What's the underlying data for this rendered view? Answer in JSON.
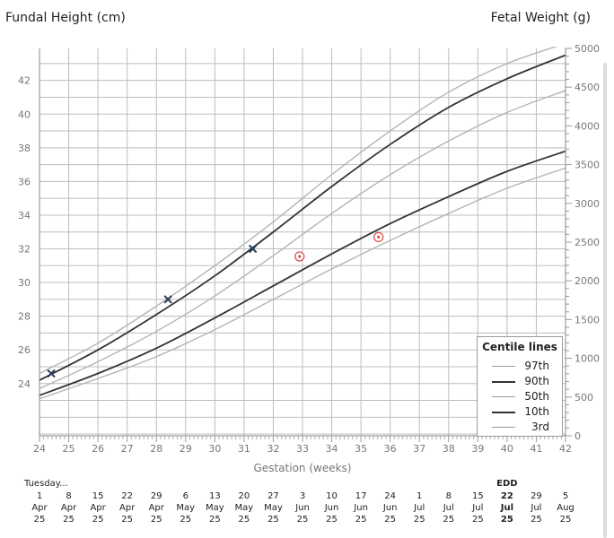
{
  "header": {
    "left_title": "Fundal Height (cm)",
    "right_title": "Fetal Weight (g)"
  },
  "chart_data": {
    "type": "line",
    "xlabel": "Gestation (weeks)",
    "ylabel_left": "Fundal Height (cm)",
    "ylabel_right": "Fetal Weight (g)",
    "xlim": [
      24,
      42
    ],
    "x_ticks": [
      "24",
      "25",
      "26",
      "27",
      "28",
      "29",
      "30",
      "31",
      "32",
      "33",
      "34",
      "35",
      "36",
      "37",
      "38",
      "39",
      "40",
      "41",
      "42"
    ],
    "ylim_left": [
      20.9,
      43.9
    ],
    "y_ticks_left": [
      "24",
      "26",
      "28",
      "30",
      "32",
      "34",
      "36",
      "38",
      "40",
      "42"
    ],
    "ylim_right": [
      0,
      5000
    ],
    "y_ticks_right": [
      "0",
      "500",
      "1000",
      "1500",
      "2000",
      "2500",
      "3000",
      "3500",
      "4000",
      "4500",
      "5000"
    ],
    "grid": true,
    "x": [
      24,
      26,
      28,
      30,
      32,
      34,
      36,
      38,
      40,
      42
    ],
    "series": [
      {
        "name": "97th",
        "style": "light",
        "color": "#b4b4b4",
        "values": [
          24.6,
          26.4,
          28.6,
          31.0,
          33.6,
          36.4,
          39.0,
          41.3,
          43.0,
          44.2
        ]
      },
      {
        "name": "90th",
        "style": "dark",
        "color": "#333333",
        "values": [
          24.2,
          26.0,
          28.1,
          30.4,
          33.0,
          35.7,
          38.2,
          40.4,
          42.1,
          43.5
        ]
      },
      {
        "name": "50th",
        "style": "light",
        "color": "#b4b4b4",
        "values": [
          23.7,
          25.3,
          27.1,
          29.2,
          31.6,
          34.1,
          36.4,
          38.4,
          40.1,
          41.4
        ]
      },
      {
        "name": "10th",
        "style": "dark",
        "color": "#333333",
        "values": [
          23.3,
          24.6,
          26.1,
          27.9,
          29.8,
          31.7,
          33.5,
          35.1,
          36.6,
          37.8
        ]
      },
      {
        "name": "3rd",
        "style": "light",
        "color": "#b4b4b4",
        "values": [
          23.1,
          24.3,
          25.6,
          27.2,
          29.0,
          30.8,
          32.5,
          34.1,
          35.6,
          36.8
        ]
      }
    ],
    "fundal_measurements": {
      "marker": "x",
      "color": "#2c3e5c",
      "points": [
        {
          "x": 24.4,
          "y": 24.6
        },
        {
          "x": 28.4,
          "y": 29.0
        },
        {
          "x": 31.3,
          "y": 32.0
        }
      ]
    },
    "weight_estimates": {
      "marker": "circle-dot",
      "color": "#d9534f",
      "points": [
        {
          "x": 32.9,
          "y": 2315
        },
        {
          "x": 35.6,
          "y": 2565
        }
      ]
    },
    "legend": {
      "title": "Centile lines",
      "position": "bottom-right"
    }
  },
  "calendar": {
    "today_label": "Tuesday...",
    "edd_label": "EDD",
    "edd_week": 40,
    "columns": [
      {
        "week": 24,
        "day": "1",
        "month": "Apr",
        "year": "25"
      },
      {
        "week": 25,
        "day": "8",
        "month": "Apr",
        "year": "25"
      },
      {
        "week": 26,
        "day": "15",
        "month": "Apr",
        "year": "25"
      },
      {
        "week": 27,
        "day": "22",
        "month": "Apr",
        "year": "25"
      },
      {
        "week": 28,
        "day": "29",
        "month": "Apr",
        "year": "25"
      },
      {
        "week": 29,
        "day": "6",
        "month": "May",
        "year": "25"
      },
      {
        "week": 30,
        "day": "13",
        "month": "May",
        "year": "25"
      },
      {
        "week": 31,
        "day": "20",
        "month": "May",
        "year": "25"
      },
      {
        "week": 32,
        "day": "27",
        "month": "May",
        "year": "25"
      },
      {
        "week": 33,
        "day": "3",
        "month": "Jun",
        "year": "25"
      },
      {
        "week": 34,
        "day": "10",
        "month": "Jun",
        "year": "25"
      },
      {
        "week": 35,
        "day": "17",
        "month": "Jun",
        "year": "25"
      },
      {
        "week": 36,
        "day": "24",
        "month": "Jun",
        "year": "25"
      },
      {
        "week": 37,
        "day": "1",
        "month": "Jul",
        "year": "25"
      },
      {
        "week": 38,
        "day": "8",
        "month": "Jul",
        "year": "25"
      },
      {
        "week": 39,
        "day": "15",
        "month": "Jul",
        "year": "25"
      },
      {
        "week": 40,
        "day": "22",
        "month": "Jul",
        "year": "25"
      },
      {
        "week": 41,
        "day": "29",
        "month": "Jul",
        "year": "25"
      },
      {
        "week": 42,
        "day": "5",
        "month": "Aug",
        "year": "25"
      }
    ]
  }
}
